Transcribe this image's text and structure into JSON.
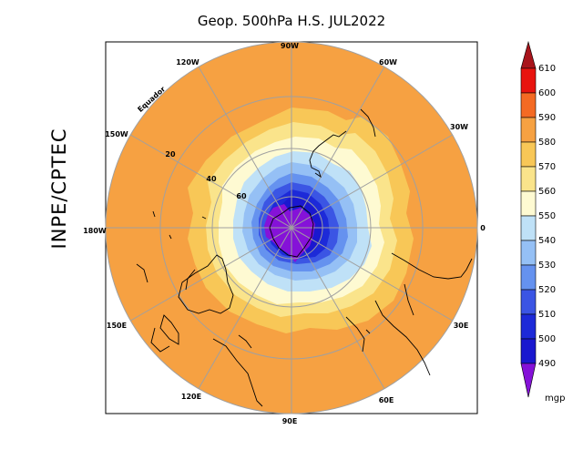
{
  "header": {
    "title": "Geop. 500hPa H.S. JUL2022"
  },
  "side_label": "INPE/CPTEC",
  "map": {
    "equator_label": "Equador",
    "longitude_labels": [
      "90W",
      "60W",
      "30W",
      "0",
      "30E",
      "60E",
      "90E",
      "120E",
      "150E",
      "180W",
      "150W",
      "120W"
    ],
    "latitude_labels": [
      "20",
      "40",
      "60"
    ]
  },
  "colorbar": {
    "unit": "mgp",
    "levels": [
      "610",
      "600",
      "590",
      "580",
      "570",
      "560",
      "550",
      "540",
      "530",
      "520",
      "510",
      "500",
      "490"
    ],
    "colors": {
      "above_610": "#a8141b",
      "600_610": "#e8140f",
      "590_600": "#f46a23",
      "580_590": "#f6a142",
      "570_580": "#f8c757",
      "560_570": "#fae48b",
      "550_560": "#fefad2",
      "540_550": "#bfe1f7",
      "530_540": "#95c0f5",
      "520_530": "#6592ef",
      "510_520": "#3b55e4",
      "500_510": "#1d2ad8",
      "490_500": "#1a18cf",
      "below_490": "#8512d8"
    }
  }
}
